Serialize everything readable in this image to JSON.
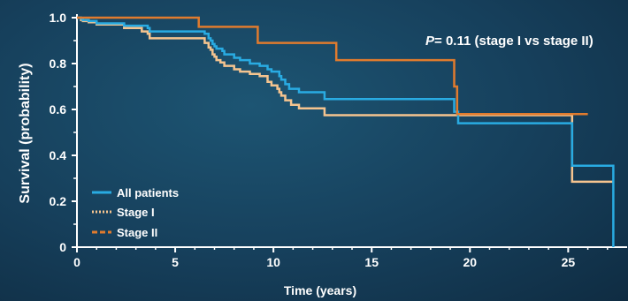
{
  "chart_data": {
    "type": "line",
    "xlabel": "Time (years)",
    "ylabel": "Survival (probability)",
    "xlim": [
      0,
      28
    ],
    "ylim": [
      0,
      1.0
    ],
    "xticks": [
      0,
      5,
      10,
      15,
      20,
      25
    ],
    "yticks": [
      0,
      0.2,
      0.4,
      0.6,
      0.8,
      1.0
    ],
    "ytick_labels": [
      "0",
      "0.2",
      "0.4",
      "0.6",
      "0.8",
      "1.0"
    ],
    "grid": false,
    "legend_position": "bottom-left",
    "annotation": {
      "prefix": "P",
      "text": "= 0.11 (stage I vs stage II)"
    },
    "series": [
      {
        "name": "All patients",
        "color": "#29abe2",
        "line_style": "solid",
        "x": [
          0,
          0.2,
          0.3,
          0.6,
          1.0,
          2.4,
          3.6,
          3.7,
          6.5,
          6.7,
          6.8,
          6.9,
          7.0,
          7.1,
          7.4,
          7.5,
          8.0,
          8.3,
          8.8,
          9.3,
          9.7,
          9.9,
          10.3,
          10.4,
          10.6,
          10.8,
          11.3,
          12.6,
          19.2,
          19.4,
          25.2,
          27.3,
          27.3
        ],
        "y": [
          1.0,
          0.995,
          0.99,
          0.985,
          0.975,
          0.965,
          0.955,
          0.94,
          0.93,
          0.91,
          0.9,
          0.885,
          0.875,
          0.865,
          0.855,
          0.84,
          0.825,
          0.815,
          0.8,
          0.79,
          0.775,
          0.765,
          0.745,
          0.73,
          0.71,
          0.69,
          0.675,
          0.645,
          0.59,
          0.54,
          0.355,
          0.355,
          0.0
        ]
      },
      {
        "name": "Stage I",
        "color": "#f5c48f",
        "line_style": "dotted",
        "x": [
          0,
          0.2,
          0.3,
          0.6,
          1.0,
          2.4,
          3.3,
          3.6,
          3.7,
          6.5,
          6.7,
          6.8,
          6.9,
          7.0,
          7.1,
          7.3,
          7.5,
          8.0,
          8.3,
          8.8,
          9.3,
          9.7,
          9.9,
          10.2,
          10.3,
          10.4,
          10.6,
          10.9,
          11.3,
          12.6,
          25.2,
          27.3
        ],
        "y": [
          1.0,
          0.99,
          0.985,
          0.98,
          0.97,
          0.955,
          0.94,
          0.93,
          0.91,
          0.89,
          0.87,
          0.86,
          0.84,
          0.83,
          0.815,
          0.805,
          0.79,
          0.775,
          0.765,
          0.755,
          0.745,
          0.72,
          0.705,
          0.69,
          0.675,
          0.66,
          0.64,
          0.62,
          0.605,
          0.575,
          0.285,
          0.285
        ]
      },
      {
        "name": "Stage II",
        "color": "#e07b2e",
        "line_style": "dashed",
        "x": [
          0,
          6.2,
          9.2,
          13.2,
          19.2,
          19.35,
          26.0
        ],
        "y": [
          1.0,
          0.96,
          0.89,
          0.815,
          0.7,
          0.58,
          0.58
        ]
      }
    ]
  }
}
